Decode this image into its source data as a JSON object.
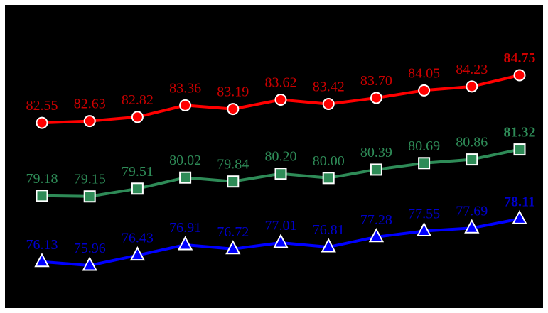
{
  "chart_data": {
    "type": "line",
    "title": "",
    "xlabel": "",
    "ylabel": "",
    "x": [
      1,
      2,
      3,
      4,
      5,
      6,
      7,
      8,
      9,
      10,
      11
    ],
    "ylim": [
      75,
      86
    ],
    "grid": false,
    "legend": "none",
    "background": "#000000",
    "series": [
      {
        "color": "#ff0000",
        "label_color": "#cc0000",
        "marker": "circle",
        "values": [
          82.55,
          82.63,
          82.82,
          83.36,
          83.19,
          83.62,
          83.42,
          83.7,
          84.05,
          84.23,
          84.75
        ],
        "labels": [
          "82.55",
          "82.63",
          "82.82",
          "83.36",
          "83.19",
          "83.62",
          "83.42",
          "83.70",
          "84.05",
          "84.23",
          "84.75"
        ]
      },
      {
        "color": "#2e8b57",
        "label_color": "#2e8b57",
        "marker": "square",
        "values": [
          79.18,
          79.15,
          79.51,
          80.02,
          79.84,
          80.2,
          80.0,
          80.39,
          80.69,
          80.86,
          81.32
        ],
        "labels": [
          "79.18",
          "79.15",
          "79.51",
          "80.02",
          "79.84",
          "80.20",
          "80.00",
          "80.39",
          "80.69",
          "80.86",
          "81.32"
        ]
      },
      {
        "color": "#0000ff",
        "label_color": "#0000cc",
        "marker": "triangle",
        "values": [
          76.13,
          75.96,
          76.43,
          76.91,
          76.72,
          77.01,
          76.81,
          77.28,
          77.55,
          77.69,
          78.11
        ],
        "labels": [
          "76.13",
          "75.96",
          "76.43",
          "76.91",
          "76.72",
          "77.01",
          "76.81",
          "77.28",
          "77.55",
          "77.69",
          "78.11"
        ]
      }
    ]
  }
}
